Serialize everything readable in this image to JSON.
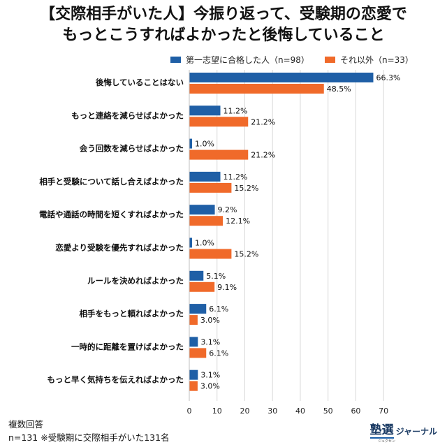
{
  "title_line1": "【交際相手がいた人】今振り返って、受験期の恋愛で",
  "title_line2": "もっとこうすればよかったと後悔していること",
  "footer": {
    "line1": "複数回答",
    "line2": "n=131 ※受験期に交際相手がいた131名"
  },
  "logo": {
    "kanji": "塾選",
    "kana": "ジャーナル",
    "ruby": "ジュクセン"
  },
  "colors": {
    "series1": "#1f5fa6",
    "series2": "#f06a2a",
    "grid": "#d9d9d9"
  },
  "chart_data": {
    "type": "bar",
    "orientation": "horizontal",
    "categories": [
      "後悔していることはない",
      "もっと連絡を減らせばよかった",
      "会う回数を減らせばよかった",
      "相手と受験について話し合えばよかった",
      "電話や通話の時間を短くすればよかった",
      "恋愛より受験を優先すればよかった",
      "ルールを決めればよかった",
      "相手をもっと頼ればよかった",
      "一時的に距離を置けばよかった",
      "もっと早く気持ちを伝えればよかった"
    ],
    "series": [
      {
        "name": "第一志望に合格した人（n=98）",
        "values": [
          66.3,
          11.2,
          1.0,
          11.2,
          9.2,
          1.0,
          5.1,
          6.1,
          3.1,
          3.1
        ]
      },
      {
        "name": "それ以外（n=33）",
        "values": [
          48.5,
          21.2,
          21.2,
          15.2,
          12.1,
          15.2,
          9.1,
          3.0,
          6.1,
          3.0
        ]
      }
    ],
    "xlim": [
      0,
      77
    ],
    "xticks": [
      0,
      10,
      20,
      30,
      40,
      50,
      60,
      70
    ],
    "xtick_labels": [
      "0",
      "10",
      "20",
      "30",
      "40",
      "50",
      "60",
      "70"
    ],
    "value_suffix": "%",
    "grid": true,
    "legend_position": "top"
  }
}
